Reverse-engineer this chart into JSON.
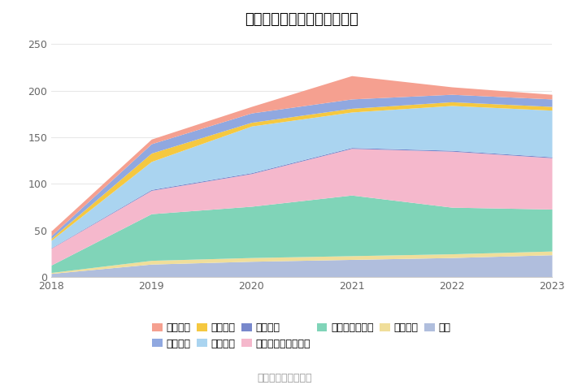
{
  "title": "历年主要负债堆积图（亿元）",
  "years": [
    2018,
    2019,
    2020,
    2021,
    2022,
    2023
  ],
  "series_bottom_to_top": [
    {
      "name": "其它",
      "color": "#b0bedd",
      "values": [
        4,
        14,
        17,
        19,
        21,
        24
      ]
    },
    {
      "name": "应付债券",
      "color": "#f0de9a",
      "values": [
        1,
        4,
        4,
        4,
        4,
        4
      ]
    },
    {
      "name": "代理买卖证券款",
      "color": "#80d4b8",
      "values": [
        8,
        50,
        55,
        65,
        50,
        45
      ]
    },
    {
      "name": "卖出回购金融资产款",
      "color": "#f5b8cc",
      "values": [
        18,
        25,
        35,
        50,
        60,
        55
      ]
    },
    {
      "name": "预收款项",
      "color": "#7888cc",
      "values": [
        0.5,
        1,
        1,
        1,
        1,
        1
      ]
    },
    {
      "name": "应付账款",
      "color": "#aad4f0",
      "values": [
        8,
        30,
        50,
        38,
        48,
        50
      ]
    },
    {
      "name": "应收票据",
      "color": "#f5c840",
      "values": [
        2,
        9,
        4,
        4,
        4,
        4
      ]
    },
    {
      "name": "拆入资金",
      "color": "#90a8e0",
      "values": [
        3,
        10,
        10,
        10,
        8,
        8
      ]
    },
    {
      "name": "短期借款",
      "color": "#f5a090",
      "values": [
        5,
        5,
        7,
        25,
        8,
        5
      ]
    }
  ],
  "legend_order": [
    {
      "name": "短期借款",
      "color": "#f5a090"
    },
    {
      "name": "拆入资金",
      "color": "#90a8e0"
    },
    {
      "name": "应收票据",
      "color": "#f5c840"
    },
    {
      "name": "应付账款",
      "color": "#aad4f0"
    },
    {
      "name": "预收款项",
      "color": "#7888cc"
    },
    {
      "name": "卖出回购金融资产款",
      "color": "#f5b8cc"
    },
    {
      "name": "代理买卖证券款",
      "color": "#80d4b8"
    },
    {
      "name": "应付债券",
      "color": "#f0de9a"
    },
    {
      "name": "其它",
      "color": "#b0bedd"
    }
  ],
  "ylim": [
    0,
    260
  ],
  "yticks": [
    0,
    50,
    100,
    150,
    200,
    250
  ],
  "background_color": "#ffffff",
  "grid_color": "#e8e8e8",
  "source_text": "数据来源：恒生聚源",
  "title_fontsize": 13
}
